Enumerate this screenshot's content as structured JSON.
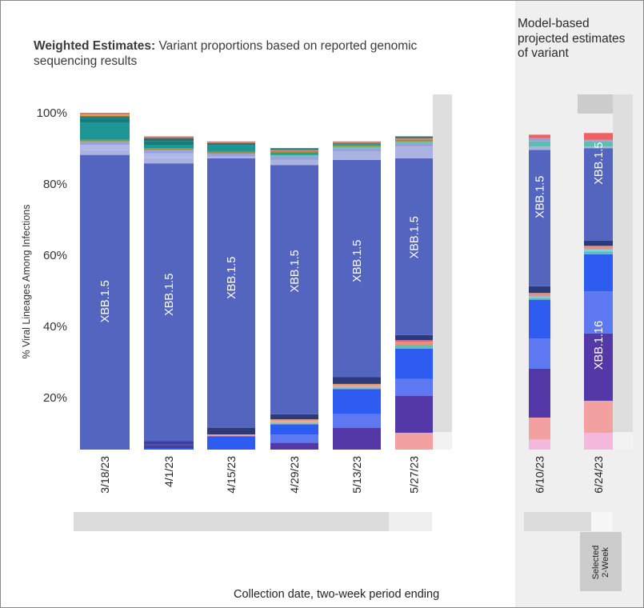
{
  "title_bold": "Weighted Estimates:",
  "title_rest": " Variant proportions based on reported genomic sequencing results",
  "projection_title": "Model-based projected estimates of variant",
  "ylabel": "% Viral Lineages Among Infections",
  "xlabel": "Collection date, two-week period ending",
  "selected_label_line1": "Selected",
  "selected_label_line2": "2-Week",
  "y_ticks": [
    "100%",
    "80%",
    "60%",
    "40%",
    "20%"
  ],
  "colors": {
    "XBB.1.5": "#5465bf",
    "XBB.1.5-dark": "#2b3a7a",
    "XBB.1.16": "#5438a8",
    "XBB.1.9.1": "#2f5cf0",
    "XBB.1.9.2": "#5d78f0",
    "XBB.2.3": "#f2a0a0",
    "EG.5": "#f3b8dc",
    "BQ.1.1": "#1f9696",
    "other-light": "#a9b2e0"
  },
  "chart_data": {
    "type": "bar",
    "stacked": true,
    "ylim": [
      0,
      100
    ],
    "categories": [
      "3/18/23",
      "4/1/23",
      "4/15/23",
      "4/29/23",
      "5/13/23",
      "5/27/23",
      "6/10/23",
      "6/24/23"
    ],
    "bar_labels": [
      {
        "category": "3/18/23",
        "text": "XBB.1.5",
        "at": 44
      },
      {
        "category": "4/1/23",
        "text": "XBB.1.5",
        "at": 46
      },
      {
        "category": "4/15/23",
        "text": "XBB.1.5",
        "at": 51
      },
      {
        "category": "4/29/23",
        "text": "XBB.1.5",
        "at": 53
      },
      {
        "category": "5/13/23",
        "text": "XBB.1.5",
        "at": 56
      },
      {
        "category": "5/27/23",
        "text": "XBB.1.5",
        "at": 63
      },
      {
        "category": "6/10/23",
        "text": "XBB.1.5",
        "at": 75
      },
      {
        "category": "6/24/23",
        "text": "XBB.1.5",
        "at": 85
      },
      {
        "category": "6/24/23",
        "text": "XBB.1.16",
        "at": 31
      }
    ],
    "stacks": [
      {
        "category": "3/18/23",
        "segments": [
          {
            "color": "#5465bf",
            "value": 87.5
          },
          {
            "color": "#a9b2e0",
            "value": 1.5
          },
          {
            "color": "#b0b8e6",
            "value": 1.5
          },
          {
            "color": "#9aa0d8",
            "value": 1.0
          },
          {
            "color": "#8f8f3a",
            "value": 0.5
          },
          {
            "color": "#1f9696",
            "value": 5.0
          },
          {
            "color": "#137e7e",
            "value": 1.5
          },
          {
            "color": "#2a7070",
            "value": 0.5
          },
          {
            "color": "#e0a030",
            "value": 0.5
          },
          {
            "color": "#d87a6a",
            "value": 0.5
          }
        ]
      },
      {
        "category": "4/1/23",
        "segments": [
          {
            "color": "#2f5cf0",
            "value": 0.5
          },
          {
            "color": "#2b3a7a",
            "value": 0.5
          },
          {
            "color": "#5438a8",
            "value": 0.5
          },
          {
            "color": "#3a3fa0",
            "value": 1.0
          },
          {
            "color": "#5465bf",
            "value": 82.5
          },
          {
            "color": "#a9b2e0",
            "value": 1.5
          },
          {
            "color": "#b0b8e6",
            "value": 1.5
          },
          {
            "color": "#9aa0d8",
            "value": 1.0
          },
          {
            "color": "#8f8f3a",
            "value": 0.5
          },
          {
            "color": "#1f9696",
            "value": 1.0
          },
          {
            "color": "#137e7e",
            "value": 1.0
          },
          {
            "color": "#2a7070",
            "value": 1.0
          },
          {
            "color": "#d87a6a",
            "value": 0.5
          }
        ]
      },
      {
        "category": "4/15/23",
        "segments": [
          {
            "color": "#2f5cf0",
            "value": 4.0
          },
          {
            "color": "#f2a0a0",
            "value": 0.5
          },
          {
            "color": "#2b3a7a",
            "value": 2.0
          },
          {
            "color": "#5465bf",
            "value": 80.0
          },
          {
            "color": "#a9b2e0",
            "value": 0.5
          },
          {
            "color": "#9aa0d8",
            "value": 1.0
          },
          {
            "color": "#8f8f3a",
            "value": 0.5
          },
          {
            "color": "#1f9696",
            "value": 2.0
          },
          {
            "color": "#137e7e",
            "value": 0.5
          },
          {
            "color": "#d87a6a",
            "value": 0.5
          }
        ]
      },
      {
        "category": "4/29/23",
        "segments": [
          {
            "color": "#5438a8",
            "value": 2.0
          },
          {
            "color": "#5d78f0",
            "value": 2.5
          },
          {
            "color": "#2f5cf0",
            "value": 3.0
          },
          {
            "color": "#7dc0b0",
            "value": 0.5
          },
          {
            "color": "#f2a0a0",
            "value": 0.5
          },
          {
            "color": "#d8a078",
            "value": 0.5
          },
          {
            "color": "#2b3a7a",
            "value": 1.5
          },
          {
            "color": "#5465bf",
            "value": 74.0
          },
          {
            "color": "#a9b2e0",
            "value": 1.5
          },
          {
            "color": "#9aa0d8",
            "value": 1.0
          },
          {
            "color": "#5dbfb0",
            "value": 0.5
          },
          {
            "color": "#1f9696",
            "value": 0.5
          },
          {
            "color": "#8f8f3a",
            "value": 0.5
          },
          {
            "color": "#d87a6a",
            "value": 0.5
          },
          {
            "color": "#137e7e",
            "value": 0.5
          }
        ]
      },
      {
        "category": "5/13/23",
        "segments": [
          {
            "color": "#5438a8",
            "value": 6.5
          },
          {
            "color": "#5d78f0",
            "value": 4.0
          },
          {
            "color": "#2f5cf0",
            "value": 7.5
          },
          {
            "color": "#7dc0b0",
            "value": 0.5
          },
          {
            "color": "#f2a0a0",
            "value": 0.5
          },
          {
            "color": "#d8a078",
            "value": 0.5
          },
          {
            "color": "#2b3a7a",
            "value": 2.0
          },
          {
            "color": "#5465bf",
            "value": 64.5
          },
          {
            "color": "#a9b2e0",
            "value": 2.5
          },
          {
            "color": "#9aa0d8",
            "value": 1.0
          },
          {
            "color": "#5dbfb0",
            "value": 0.5
          },
          {
            "color": "#8f8f3a",
            "value": 0.5
          },
          {
            "color": "#1f9696",
            "value": 0.5
          },
          {
            "color": "#d87a6a",
            "value": 0.5
          }
        ]
      },
      {
        "category": "5/27/23",
        "segments": [
          {
            "color": "#f2a0a0",
            "value": 5.0
          },
          {
            "color": "#5438a8",
            "value": 11.0
          },
          {
            "color": "#5d78f0",
            "value": 5.0
          },
          {
            "color": "#2f5cf0",
            "value": 9.0
          },
          {
            "color": "#5dbfb0",
            "value": 1.0
          },
          {
            "color": "#e89080",
            "value": 1.0
          },
          {
            "color": "#f06060",
            "value": 0.5
          },
          {
            "color": "#2b3a7a",
            "value": 1.5
          },
          {
            "color": "#5465bf",
            "value": 52.5
          },
          {
            "color": "#a9b2e0",
            "value": 3.5
          },
          {
            "color": "#9aa0d8",
            "value": 1.0
          },
          {
            "color": "#5dbfb0",
            "value": 0.5
          },
          {
            "color": "#8f8f3a",
            "value": 0.5
          },
          {
            "color": "#d87a6a",
            "value": 0.5
          },
          {
            "color": "#2a7070",
            "value": 0.5
          }
        ]
      },
      {
        "category": "6/10/23",
        "segments": [
          {
            "color": "#f3b8dc",
            "value": 3.0
          },
          {
            "color": "#f2a0a0",
            "value": 6.5
          },
          {
            "color": "#5438a8",
            "value": 14.5
          },
          {
            "color": "#5d78f0",
            "value": 9.0
          },
          {
            "color": "#2f5cf0",
            "value": 11.5
          },
          {
            "color": "#5dbfb0",
            "value": 0.5
          },
          {
            "color": "#7dd0f0",
            "value": 0.5
          },
          {
            "color": "#e89080",
            "value": 1.0
          },
          {
            "color": "#2b3a7a",
            "value": 2.0
          },
          {
            "color": "#5465bf",
            "value": 40.5
          },
          {
            "color": "#a9b2e0",
            "value": 1.0
          },
          {
            "color": "#5dbfb0",
            "value": 1.5
          },
          {
            "color": "#9aa0d8",
            "value": 1.0
          },
          {
            "color": "#f06060",
            "value": 1.0
          }
        ]
      },
      {
        "category": "6/24/23",
        "segments": [
          {
            "color": "#f3b8dc",
            "value": 5.0
          },
          {
            "color": "#f2a0a0",
            "value": 9.5
          },
          {
            "color": "#5438a8",
            "value": 20.0
          },
          {
            "color": "#5d78f0",
            "value": 12.5
          },
          {
            "color": "#2f5cf0",
            "value": 11.0
          },
          {
            "color": "#5dbfb0",
            "value": 0.8
          },
          {
            "color": "#7dd0f0",
            "value": 0.7
          },
          {
            "color": "#e89080",
            "value": 1.0
          },
          {
            "color": "#2b3a7a",
            "value": 1.5
          },
          {
            "color": "#5465bf",
            "value": 27.5
          },
          {
            "color": "#a9b2e0",
            "value": 0.5
          },
          {
            "color": "#5dbfb0",
            "value": 1.5
          },
          {
            "color": "#9aa0d8",
            "value": 0.5
          },
          {
            "color": "#f06060",
            "value": 2.0
          }
        ]
      }
    ]
  }
}
